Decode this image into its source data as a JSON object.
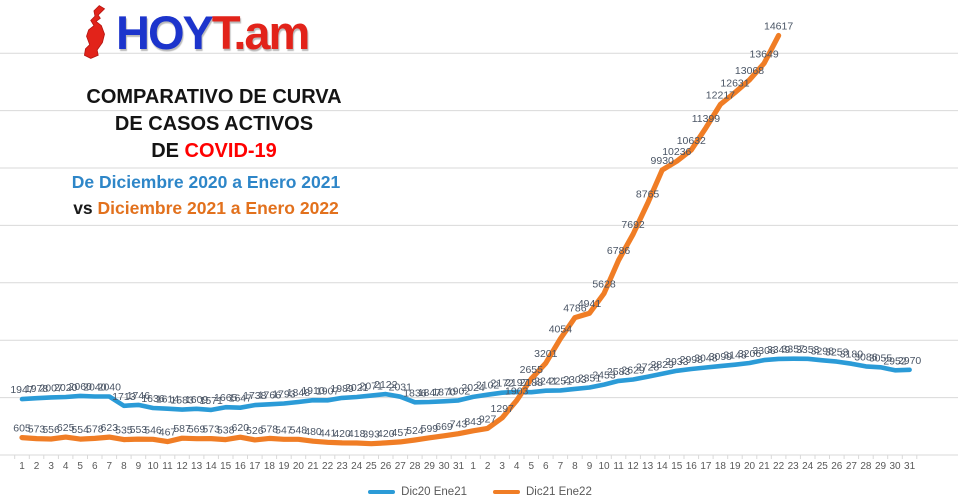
{
  "logo": {
    "text_blue": "HOY",
    "text_red": "T.am",
    "icon": "tamaulipas-map-icon",
    "colors": {
      "blue": "#1C34CC",
      "red": "#E2231A"
    }
  },
  "title": {
    "line1": "COMPARATIVO DE CURVA",
    "line2": "DE CASOS ACTIVOS",
    "line3_prefix": "DE ",
    "line3_highlight": "COVID-19",
    "highlight_color": "#FF0000"
  },
  "subtitle": {
    "line1": "De Diciembre 2020 a Enero 2021",
    "vs": "vs ",
    "line2": "Diciembre 2021 a Enero 2022",
    "colors": {
      "line1": "#2E86C8",
      "vs": "#1A1A1A",
      "line2": "#E2711D"
    }
  },
  "chart_data": {
    "type": "line",
    "title": "Comparativo de curva de casos activos de COVID-19",
    "categories": [
      "1",
      "2",
      "3",
      "4",
      "5",
      "6",
      "7",
      "8",
      "9",
      "10",
      "11",
      "12",
      "13",
      "14",
      "15",
      "16",
      "17",
      "18",
      "19",
      "20",
      "21",
      "22",
      "23",
      "24",
      "25",
      "26",
      "27",
      "28",
      "29",
      "30",
      "31",
      "1",
      "2",
      "3",
      "4",
      "5",
      "6",
      "7",
      "8",
      "9",
      "10",
      "11",
      "12",
      "13",
      "14",
      "15",
      "16",
      "17",
      "18",
      "19",
      "20",
      "21",
      "22",
      "23",
      "24",
      "25",
      "26",
      "27",
      "28",
      "29",
      "30",
      "31"
    ],
    "series": [
      {
        "name": "Dic20 Ene21",
        "color": "#2B9BD7",
        "values": [
          1947,
          1978,
          2007,
          2020,
          2060,
          2040,
          2040,
          1713,
          1746,
          1636,
          1614,
          1583,
          1609,
          1571,
          1665,
          1647,
          1738,
          1766,
          1793,
          1848,
          1910,
          1907,
          1989,
          2021,
          2071,
          2122,
          2031,
          1836,
          1847,
          1870,
          1902,
          2024,
          2102,
          2172,
          2197,
          2188,
          2241,
          2251,
          2303,
          2351,
          2453,
          2583,
          2629,
          2728,
          2829,
          2933,
          2998,
          3048,
          3099,
          3148,
          3206,
          3306,
          3349,
          3357,
          3353,
          3298,
          3253,
          3180,
          3086,
          3055,
          2952,
          2970
        ]
      },
      {
        "name": "Dic21 Ene22",
        "color": "#F07D25",
        "values": [
          605,
          573,
          556,
          625,
          554,
          578,
          623,
          535,
          553,
          546,
          467,
          587,
          569,
          573,
          538,
          620,
          526,
          578,
          547,
          548,
          480,
          441,
          420,
          418,
          393,
          420,
          457,
          524,
          599,
          669,
          743,
          843,
          927,
          1297,
          1903,
          2655,
          3201,
          4054,
          4786,
          4941,
          5628,
          6786,
          7692,
          8765,
          9930,
          10236,
          10632,
          11399,
          12217,
          12631,
          13068,
          13649,
          14617
        ]
      }
    ],
    "ylim": [
      0,
      14000
    ],
    "grid_step": 2000,
    "grid": true,
    "data_labels": true,
    "legend_position": "bottom",
    "xlabel": "",
    "ylabel": "",
    "label_color": "#4A5565",
    "axis_color": "#D9D9D9",
    "tick_label_color": "#595959"
  }
}
